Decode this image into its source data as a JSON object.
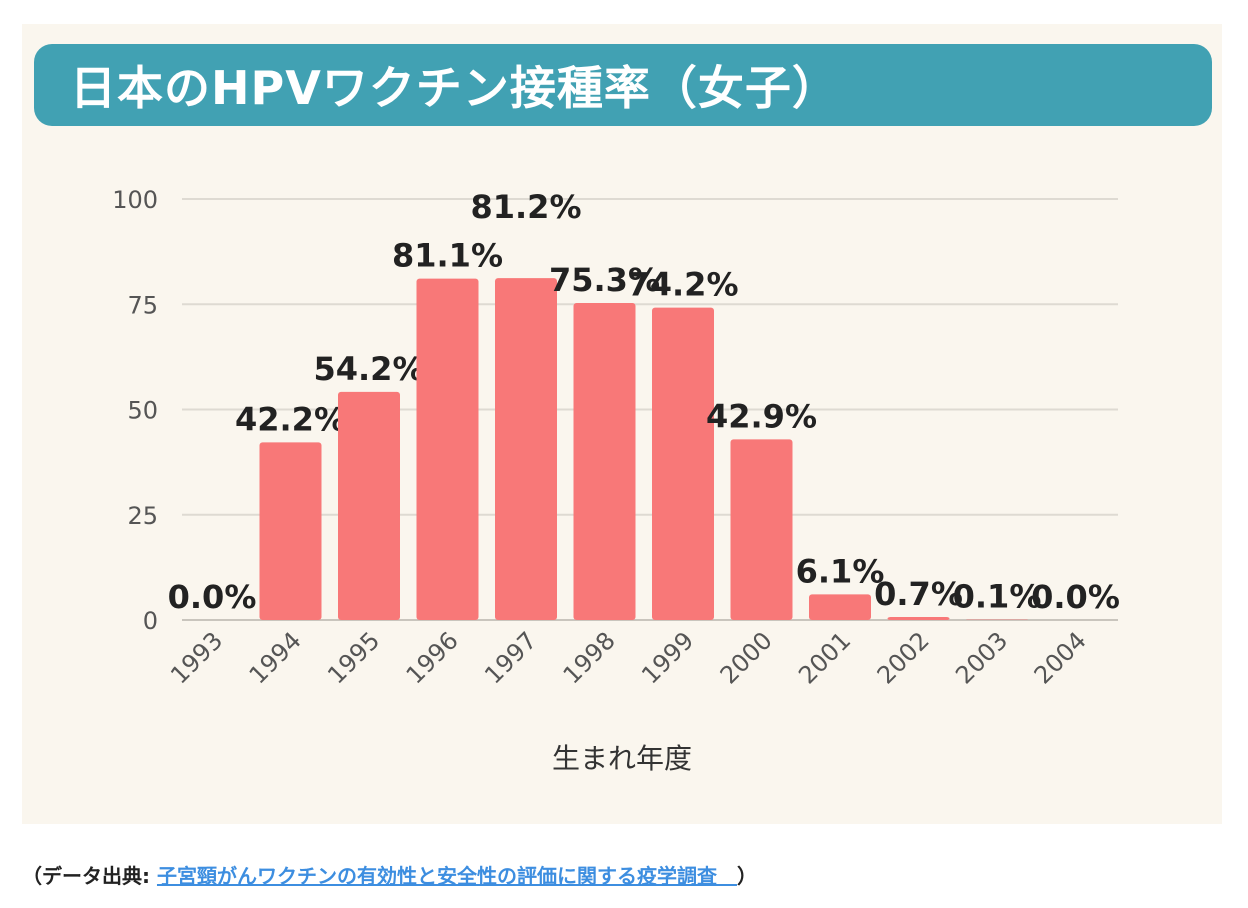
{
  "title": "日本のHPVワクチン接種率（女子）",
  "source": {
    "prefix": "（データ出典: ",
    "link_text": "子宮頸がんワクチンの有効性と安全性の評価に関する疫学調査　",
    "suffix": "）"
  },
  "colors": {
    "title_bar": "#41a1b3",
    "bar": "#f87878",
    "background": "#faf6ee",
    "link": "#3d8ee0"
  },
  "chart_data": {
    "type": "bar",
    "title": "",
    "xlabel": "生まれ年度",
    "ylabel": "",
    "ylim": [
      0,
      100
    ],
    "yticks": [
      "0",
      "25",
      "50",
      "75",
      "100"
    ],
    "grid": true,
    "categories": [
      "1993",
      "1994",
      "1995",
      "1996",
      "1997",
      "1998",
      "1999",
      "2000",
      "2001",
      "2002",
      "2003",
      "2004"
    ],
    "values": [
      0.0,
      42.2,
      54.2,
      81.1,
      81.2,
      75.3,
      74.2,
      42.9,
      6.1,
      0.7,
      0.1,
      0.0
    ],
    "data_labels": [
      "0.0%",
      "42.2%",
      "54.2%",
      "81.1%",
      "81.2%",
      "75.3%",
      "74.2%",
      "42.9%",
      "6.1%",
      "0.7%",
      "0.1%",
      "0.0%"
    ]
  }
}
